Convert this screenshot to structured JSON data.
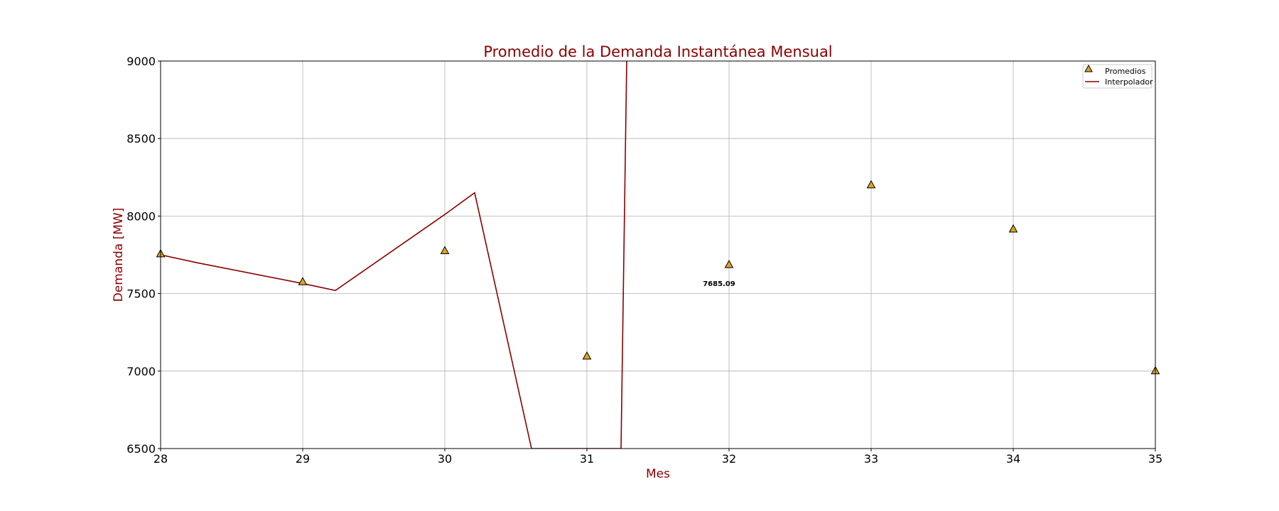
{
  "chart_data": {
    "type": "line",
    "title": "Promedio de la Demanda Instantánea Mensual",
    "xlabel": "Mes",
    "ylabel": "Demanda [MW]",
    "xlim": [
      28,
      35
    ],
    "ylim": [
      6500,
      9000
    ],
    "xticks": [
      28,
      29,
      30,
      31,
      32,
      33,
      34,
      35
    ],
    "yticks": [
      6500,
      7000,
      7500,
      8000,
      8500,
      9000
    ],
    "grid": true,
    "legend_position": "top-right",
    "series": [
      {
        "name": "Promedios",
        "kind": "scatter",
        "marker": "triangle",
        "x": [
          28,
          29,
          30,
          31,
          32,
          33,
          34,
          35
        ],
        "y": [
          7755,
          7575,
          7775,
          7095,
          7685.09,
          8200,
          7915,
          7000
        ]
      },
      {
        "name": "Interpolador",
        "kind": "line",
        "x": [
          28,
          28.25,
          29,
          29.23,
          30,
          30.21,
          30.61,
          31.24,
          31.28
        ],
        "y": [
          7750,
          7700,
          7565,
          7520,
          8010,
          8150,
          6500,
          6500,
          9000
        ]
      }
    ],
    "annotations": [
      {
        "text": "7685.09",
        "x": 31.93,
        "y": 7548
      }
    ]
  },
  "colors": {
    "title": "#8b0000",
    "axis_label": "#8b0000",
    "line": "#8b0000",
    "marker_fill": "#daa520",
    "marker_edge": "#000000",
    "grid": "#b0b0b0"
  }
}
